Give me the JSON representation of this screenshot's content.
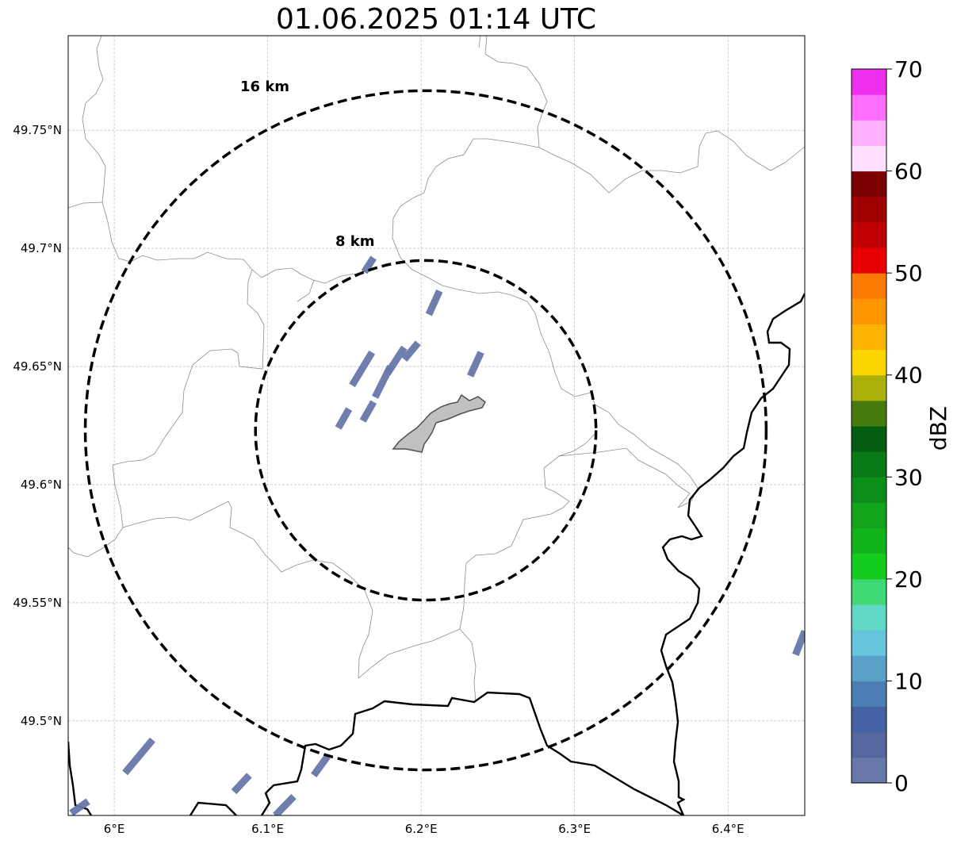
{
  "title": "01.06.2025 01:14 UTC",
  "map": {
    "lon_range": [
      5.97,
      6.45
    ],
    "lat_range": [
      49.46,
      49.79
    ],
    "lon_ticks": [
      {
        "v": 6.0,
        "label": "6°E"
      },
      {
        "v": 6.1,
        "label": "6.1°E"
      },
      {
        "v": 6.2,
        "label": "6.2°E"
      },
      {
        "v": 6.3,
        "label": "6.3°E"
      },
      {
        "v": 6.4,
        "label": "6.4°E"
      }
    ],
    "lat_ticks": [
      {
        "v": 49.75,
        "label": "49.75°N"
      },
      {
        "v": 49.7,
        "label": "49.7°N"
      },
      {
        "v": 49.65,
        "label": "49.65°N"
      },
      {
        "v": 49.6,
        "label": "49.6°N"
      },
      {
        "v": 49.55,
        "label": "49.55°N"
      },
      {
        "v": 49.5,
        "label": "49.5°N"
      }
    ],
    "grid": true,
    "center": {
      "lon": 6.203,
      "lat": 49.623
    },
    "rings": [
      {
        "radius_km": 8,
        "label": "8 km"
      },
      {
        "radius_km": 16,
        "label": "16 km"
      }
    ],
    "echo_color": "#6878a8",
    "echoes": [
      {
        "lon1": 6.146,
        "lat1": 49.624,
        "lon2": 6.153,
        "lat2": 49.632
      },
      {
        "lon1": 6.162,
        "lat1": 49.627,
        "lon2": 6.169,
        "lat2": 49.635
      },
      {
        "lon1": 6.155,
        "lat1": 49.642,
        "lon2": 6.168,
        "lat2": 49.656
      },
      {
        "lon1": 6.17,
        "lat1": 49.637,
        "lon2": 6.18,
        "lat2": 49.65
      },
      {
        "lon1": 6.178,
        "lat1": 49.647,
        "lon2": 6.189,
        "lat2": 49.658
      },
      {
        "lon1": 6.189,
        "lat1": 49.653,
        "lon2": 6.198,
        "lat2": 49.66
      },
      {
        "lon1": 6.205,
        "lat1": 49.672,
        "lon2": 6.212,
        "lat2": 49.682
      },
      {
        "lon1": 6.163,
        "lat1": 49.69,
        "lon2": 6.169,
        "lat2": 49.696
      },
      {
        "lon1": 6.232,
        "lat1": 49.646,
        "lon2": 6.239,
        "lat2": 49.656
      },
      {
        "lon1": 6.007,
        "lat1": 49.478,
        "lon2": 6.025,
        "lat2": 49.492
      },
      {
        "lon1": 6.078,
        "lat1": 49.47,
        "lon2": 6.088,
        "lat2": 49.477
      },
      {
        "lon1": 6.105,
        "lat1": 49.46,
        "lon2": 6.117,
        "lat2": 49.468
      },
      {
        "lon1": 6.13,
        "lat1": 49.477,
        "lon2": 6.139,
        "lat2": 49.485
      },
      {
        "lon1": 6.444,
        "lat1": 49.528,
        "lon2": 6.45,
        "lat2": 49.538
      },
      {
        "lon1": 5.972,
        "lat1": 49.461,
        "lon2": 5.983,
        "lat2": 49.466
      }
    ]
  },
  "colorbar": {
    "label": "dBZ",
    "min": 0,
    "max": 70,
    "ticks": [
      {
        "v": 0,
        "label": "0"
      },
      {
        "v": 10,
        "label": "10"
      },
      {
        "v": 20,
        "label": "20"
      },
      {
        "v": 30,
        "label": "30"
      },
      {
        "v": 40,
        "label": "40"
      },
      {
        "v": 50,
        "label": "50"
      },
      {
        "v": 60,
        "label": "60"
      },
      {
        "v": 70,
        "label": "70"
      }
    ],
    "colors": [
      "#6878a8",
      "#5567a0",
      "#4462a4",
      "#4c7eb4",
      "#59a1c8",
      "#66c4dc",
      "#61d8c6",
      "#3ed874",
      "#13cc1e",
      "#11b51b",
      "#11a41b",
      "#0c8f19",
      "#087a16",
      "#045e12",
      "#477b0d",
      "#acb10a",
      "#fdd600",
      "#fdb400",
      "#fd9600",
      "#fd7a00",
      "#e60000",
      "#c00000",
      "#a00000",
      "#7d0000",
      "#ffe0ff",
      "#ffb0ff",
      "#ff6eff",
      "#ee30ee"
    ]
  }
}
